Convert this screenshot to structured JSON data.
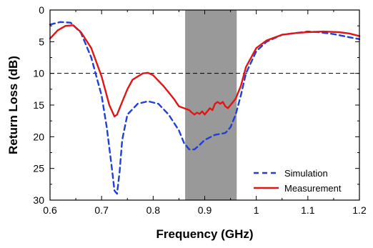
{
  "chart_data": {
    "type": "line",
    "title": "",
    "xlabel": "Frequency (GHz)",
    "ylabel": "Return Loss (dB)",
    "xlim": [
      0.6,
      1.2
    ],
    "ylim": [
      0,
      30
    ],
    "y_inverted": true,
    "x_ticks": [
      "0.6",
      "0.7",
      "0.8",
      "0.9",
      "1",
      "1.1",
      "1.2"
    ],
    "y_ticks": [
      "0",
      "5",
      "10",
      "15",
      "20",
      "25",
      "30"
    ],
    "grid": false,
    "legend_position": "bottom-right",
    "reference_line": {
      "y": 10,
      "style": "dashed",
      "color": "#000000"
    },
    "shaded_band": {
      "x": [
        0.862,
        0.962
      ],
      "color": "#999999"
    },
    "series": [
      {
        "name": "Simulation",
        "color": "#1f3fd6",
        "style": "dashed",
        "x": [
          0.6,
          0.62,
          0.64,
          0.66,
          0.68,
          0.7,
          0.71,
          0.72,
          0.725,
          0.73,
          0.735,
          0.74,
          0.75,
          0.77,
          0.79,
          0.81,
          0.83,
          0.85,
          0.86,
          0.87,
          0.88,
          0.89,
          0.9,
          0.92,
          0.94,
          0.95,
          0.96,
          0.97,
          0.98,
          1.0,
          1.02,
          1.05,
          1.08,
          1.1,
          1.12,
          1.15,
          1.18,
          1.2
        ],
        "y": [
          2.3,
          1.9,
          2.0,
          3.6,
          7.5,
          13.5,
          18.5,
          25.0,
          28.5,
          29.0,
          25.5,
          20.5,
          16.5,
          14.8,
          14.4,
          14.8,
          16.5,
          19.0,
          21.0,
          22.0,
          22.0,
          21.3,
          20.5,
          19.7,
          19.4,
          18.5,
          16.5,
          13.5,
          10.0,
          6.5,
          5.0,
          3.9,
          3.6,
          3.4,
          3.5,
          3.8,
          4.3,
          4.6
        ]
      },
      {
        "name": "Measurement",
        "color": "#e01616",
        "style": "solid",
        "x": [
          0.6,
          0.615,
          0.63,
          0.645,
          0.66,
          0.68,
          0.7,
          0.715,
          0.725,
          0.73,
          0.74,
          0.75,
          0.76,
          0.78,
          0.79,
          0.8,
          0.82,
          0.84,
          0.85,
          0.86,
          0.87,
          0.875,
          0.88,
          0.885,
          0.89,
          0.895,
          0.9,
          0.905,
          0.91,
          0.915,
          0.92,
          0.925,
          0.93,
          0.935,
          0.94,
          0.945,
          0.95,
          0.96,
          0.97,
          0.98,
          1.0,
          1.02,
          1.05,
          1.08,
          1.1,
          1.13,
          1.16,
          1.18,
          1.2
        ],
        "y": [
          4.5,
          3.2,
          2.5,
          2.4,
          3.5,
          6.0,
          10.5,
          15.0,
          16.8,
          16.5,
          14.5,
          12.5,
          11.0,
          10.0,
          9.9,
          10.3,
          12.0,
          14.0,
          15.2,
          15.5,
          15.8,
          16.2,
          16.5,
          16.2,
          16.4,
          16.0,
          16.5,
          16.0,
          15.5,
          15.8,
          14.8,
          14.5,
          14.8,
          14.5,
          15.2,
          15.5,
          15.0,
          14.0,
          12.0,
          9.0,
          6.0,
          4.8,
          3.9,
          3.6,
          3.5,
          3.4,
          3.5,
          3.7,
          4.1
        ]
      }
    ]
  }
}
